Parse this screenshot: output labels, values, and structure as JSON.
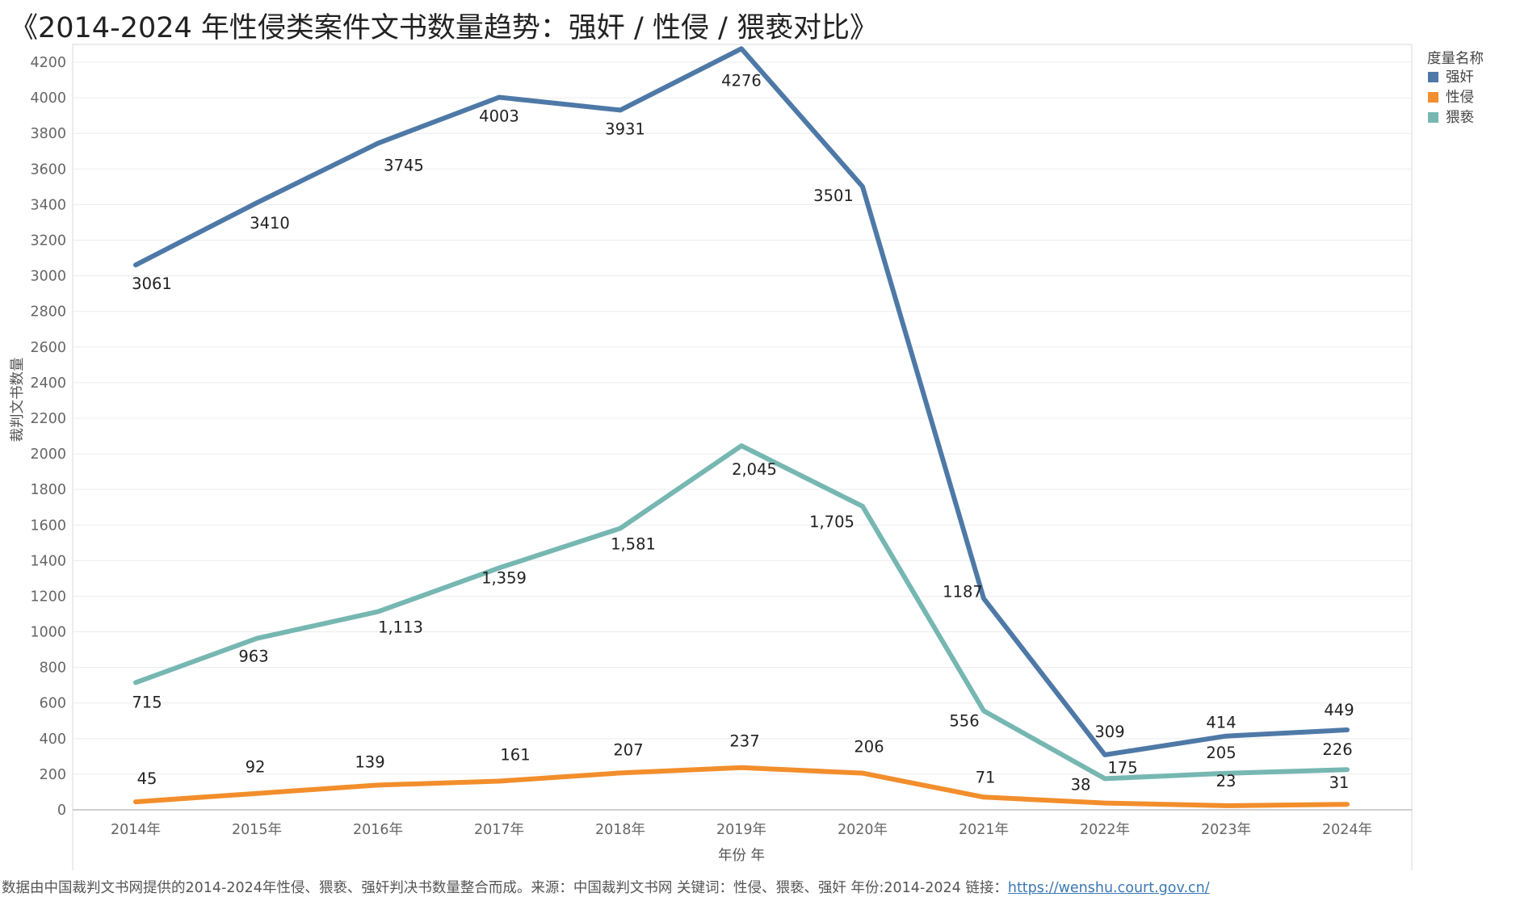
{
  "title": "《2014-2024 年性侵类案件文书数量趋势：强奸 / 性侵 / 猥亵对比》",
  "footer": {
    "text": "数据由中国裁判文书网提供的2014-2024年性侵、猥亵、强奸判决书数量整合而成。来源：中国裁判文书网 关键词：性侵、猥亵、强奸 年份:2014-2024 链接：",
    "link": "https://wenshu.court.gov.cn/"
  },
  "chart_data": {
    "type": "line",
    "title": "《2014-2024 年性侵类案件文书数量趋势：强奸 / 性侵 / 猥亵对比》",
    "xlabel": "年份 年",
    "ylabel": "裁判文书数量",
    "ylim": [
      0,
      4300
    ],
    "yticks": [
      0,
      200,
      400,
      600,
      800,
      1000,
      1200,
      1400,
      1600,
      1800,
      2000,
      2200,
      2400,
      2600,
      2800,
      3000,
      3200,
      3400,
      3600,
      3800,
      4000,
      4200
    ],
    "categories": [
      "2014年",
      "2015年",
      "2016年",
      "2017年",
      "2018年",
      "2019年",
      "2020年",
      "2021年",
      "2022年",
      "2023年",
      "2024年"
    ],
    "grid": true,
    "legend": {
      "title": "度量名称",
      "position": "right"
    },
    "series": [
      {
        "name": "强奸",
        "color": "#4e79a7",
        "values": [
          3061,
          3410,
          3745,
          4003,
          3931,
          4276,
          3501,
          1187,
          309,
          414,
          449
        ],
        "labels": [
          "3061",
          "3410",
          "3745",
          "4003",
          "3931",
          "4276",
          "3501",
          "1187",
          "309",
          "414",
          "449"
        ]
      },
      {
        "name": "性侵",
        "color": "#f28e2b",
        "values": [
          45,
          92,
          139,
          161,
          207,
          237,
          206,
          71,
          38,
          23,
          31
        ],
        "labels": [
          "45",
          "92",
          "139",
          "161",
          "207",
          "237",
          "206",
          "71",
          "38",
          "23",
          "31"
        ]
      },
      {
        "name": "猥亵",
        "color": "#76b7b2",
        "values": [
          715,
          963,
          1113,
          1359,
          1581,
          2045,
          1705,
          556,
          175,
          205,
          226
        ],
        "labels": [
          "715",
          "963",
          "1,113",
          "1,359",
          "1,581",
          "2,045",
          "1,705",
          "556",
          "175",
          "205",
          "226"
        ]
      }
    ]
  }
}
